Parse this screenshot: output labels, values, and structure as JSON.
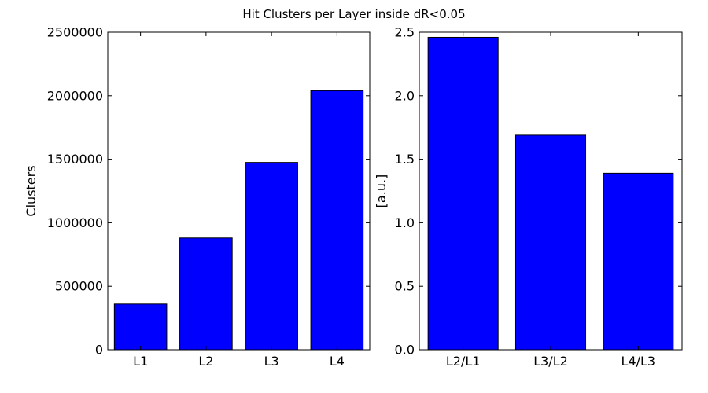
{
  "figure": {
    "suptitle": "Hit Clusters per Layer inside dR<0.05"
  },
  "chart_data": [
    {
      "type": "bar",
      "categories": [
        "L1",
        "L2",
        "L3",
        "L4"
      ],
      "values": [
        360000,
        880000,
        1475000,
        2040000
      ],
      "title": "",
      "xlabel": "",
      "ylabel": "Clusters",
      "ylim": [
        0,
        2500000
      ],
      "yticks": [
        0,
        500000,
        1000000,
        1500000,
        2000000,
        2500000
      ],
      "ytick_labels": [
        "0",
        "500000",
        "1000000",
        "1500000",
        "2000000",
        "2500000"
      ],
      "bar_color": "#0000ff",
      "grid": false
    },
    {
      "type": "bar",
      "categories": [
        "L2/L1",
        "L3/L2",
        "L4/L3"
      ],
      "values": [
        2.46,
        1.69,
        1.39
      ],
      "title": "",
      "xlabel": "",
      "ylabel": "[a.u.]",
      "ylim": [
        0,
        2.5
      ],
      "yticks": [
        0,
        0.5,
        1.0,
        1.5,
        2.0,
        2.5
      ],
      "ytick_labels": [
        "0.0",
        "0.5",
        "1.0",
        "1.5",
        "2.0",
        "2.5"
      ],
      "bar_color": "#0000ff",
      "grid": false
    }
  ]
}
